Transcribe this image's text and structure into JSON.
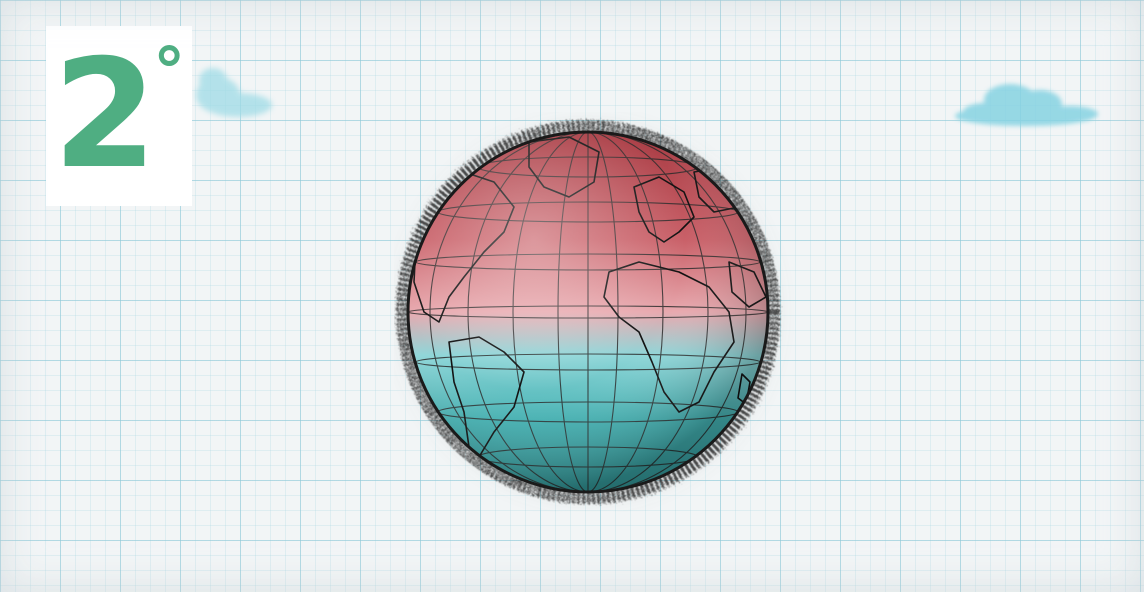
{
  "logo": {
    "digit": "2",
    "degree": "°",
    "color": "#4fae82"
  },
  "colors": {
    "grid_line": "#8cc8d7",
    "paper": "#f2f5f6",
    "cloud": "#7fd0e0",
    "globe_warm": "#b94a4f",
    "globe_cool": "#4fb8b8",
    "globe_outline": "#1a1a1a"
  },
  "icons": {
    "cloud_left": "cloud-icon",
    "cloud_right": "cloud-icon",
    "globe": "globe-icon"
  }
}
